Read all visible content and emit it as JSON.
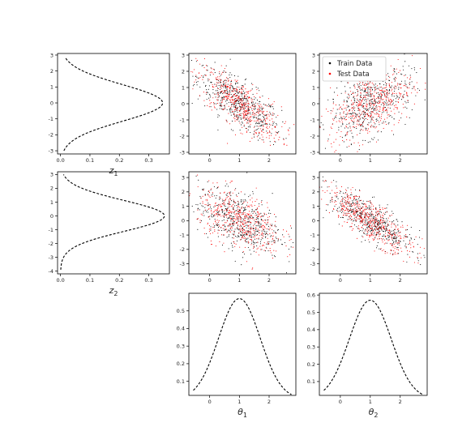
{
  "legend": {
    "items": [
      {
        "label": "Train Data",
        "color": "#000000"
      },
      {
        "label": "Test Data",
        "color": "#ff0000"
      }
    ]
  },
  "chart_data": [
    {
      "id": "z1_marginal",
      "type": "line",
      "orientation": "horizontal-density",
      "x_ticks": [
        "0.0",
        "0.1",
        "0.2",
        "0.3"
      ],
      "y_ticks": [
        "3",
        "2",
        "1",
        "0",
        "-1",
        "-2",
        "-3"
      ],
      "xlim": [
        -0.01,
        0.37
      ],
      "ylim": [
        -3.2,
        3.1
      ],
      "xlabel": "z",
      "xlabel_sub": "1",
      "series": [
        {
          "style": "dashed",
          "color": "#000000",
          "mean": 0,
          "sd": 1.15,
          "y_range": [
            -3.0,
            2.8
          ]
        }
      ]
    },
    {
      "id": "z1_theta1_scatter",
      "type": "scatter",
      "x_ticks": [
        "0",
        "1",
        "2"
      ],
      "y_ticks": [
        "3",
        "2",
        "1",
        "0",
        "-1",
        "-2",
        "-3"
      ],
      "xlim": [
        -0.7,
        2.9
      ],
      "ylim": [
        -3.1,
        3.1
      ],
      "series": [
        {
          "name": "Train Data",
          "color": "#000000",
          "n": 500
        },
        {
          "name": "Test Data",
          "color": "#ff0000",
          "n": 500
        }
      ],
      "cloud": {
        "mean_x": 1.0,
        "mean_y": 0.0,
        "sd_x": 0.7,
        "sd_y": 1.1,
        "corr": -0.75
      }
    },
    {
      "id": "z1_theta2_scatter",
      "type": "scatter",
      "x_ticks": [
        "0",
        "1",
        "2"
      ],
      "y_ticks": [
        "3",
        "2",
        "1",
        "0",
        "-1",
        "-2",
        "-3"
      ],
      "xlim": [
        -0.7,
        2.9
      ],
      "ylim": [
        -3.1,
        3.1
      ],
      "series": [
        {
          "name": "Train Data",
          "color": "#000000",
          "n": 500
        },
        {
          "name": "Test Data",
          "color": "#ff0000",
          "n": 500
        }
      ],
      "cloud": {
        "mean_x": 1.0,
        "mean_y": 0.0,
        "sd_x": 0.7,
        "sd_y": 1.1,
        "corr": 0.45
      },
      "legend": "top-left"
    },
    {
      "id": "z2_marginal",
      "type": "line",
      "orientation": "horizontal-density",
      "x_ticks": [
        "0.0",
        "0.1",
        "0.2",
        "0.3"
      ],
      "y_ticks": [
        "3",
        "2",
        "1",
        "0",
        "-1",
        "-2",
        "-3",
        "-4"
      ],
      "xlim": [
        -0.01,
        0.37
      ],
      "ylim": [
        -4.2,
        3.2
      ],
      "xlabel": "z",
      "xlabel_sub": "2",
      "series": [
        {
          "style": "dashed",
          "color": "#000000",
          "mean": 0,
          "sd": 1.13,
          "y_range": [
            -3.9,
            3.0
          ]
        }
      ]
    },
    {
      "id": "z2_theta1_scatter",
      "type": "scatter",
      "x_ticks": [
        "0",
        "1",
        "2"
      ],
      "y_ticks": [
        "3",
        "2",
        "1",
        "0",
        "-1",
        "-2",
        "-3"
      ],
      "xlim": [
        -0.7,
        2.9
      ],
      "ylim": [
        -3.7,
        3.4
      ],
      "series": [
        {
          "name": "Train Data",
          "color": "#000000",
          "n": 500
        },
        {
          "name": "Test Data",
          "color": "#ff0000",
          "n": 500
        }
      ],
      "cloud": {
        "mean_x": 1.0,
        "mean_y": 0.0,
        "sd_x": 0.7,
        "sd_y": 1.1,
        "corr": -0.45
      }
    },
    {
      "id": "z2_theta2_scatter",
      "type": "scatter",
      "x_ticks": [
        "0",
        "1",
        "2"
      ],
      "y_ticks": [
        "3",
        "2",
        "1",
        "0",
        "-1",
        "-2",
        "-3"
      ],
      "xlim": [
        -0.7,
        2.9
      ],
      "ylim": [
        -3.7,
        3.4
      ],
      "series": [
        {
          "name": "Train Data",
          "color": "#000000",
          "n": 500
        },
        {
          "name": "Test Data",
          "color": "#ff0000",
          "n": 500
        }
      ],
      "cloud": {
        "mean_x": 1.0,
        "mean_y": 0.0,
        "sd_x": 0.7,
        "sd_y": 1.1,
        "corr": -0.8
      }
    },
    {
      "id": "theta1_marginal",
      "type": "line",
      "x_ticks": [
        "0",
        "1",
        "2"
      ],
      "y_ticks": [
        "0.5",
        "0.4",
        "0.3",
        "0.2",
        "0.1"
      ],
      "xlim": [
        -0.7,
        2.9
      ],
      "ylim": [
        0.02,
        0.6
      ],
      "xlabel": "θ",
      "xlabel_sub": "1",
      "series": [
        {
          "style": "dashed",
          "color": "#000000",
          "mean": 1.0,
          "sd": 0.7,
          "x_range": [
            -0.55,
            2.75
          ]
        }
      ]
    },
    {
      "id": "theta2_marginal",
      "type": "line",
      "x_ticks": [
        "0",
        "1",
        "2"
      ],
      "y_ticks": [
        "0.6",
        "0.5",
        "0.4",
        "0.3",
        "0.2",
        "0.1"
      ],
      "xlim": [
        -0.7,
        2.9
      ],
      "ylim": [
        0.02,
        0.61
      ],
      "xlabel": "θ",
      "xlabel_sub": "2",
      "series": [
        {
          "style": "dashed",
          "color": "#000000",
          "mean": 1.0,
          "sd": 0.7,
          "x_range": [
            -0.55,
            2.75
          ]
        }
      ]
    }
  ]
}
